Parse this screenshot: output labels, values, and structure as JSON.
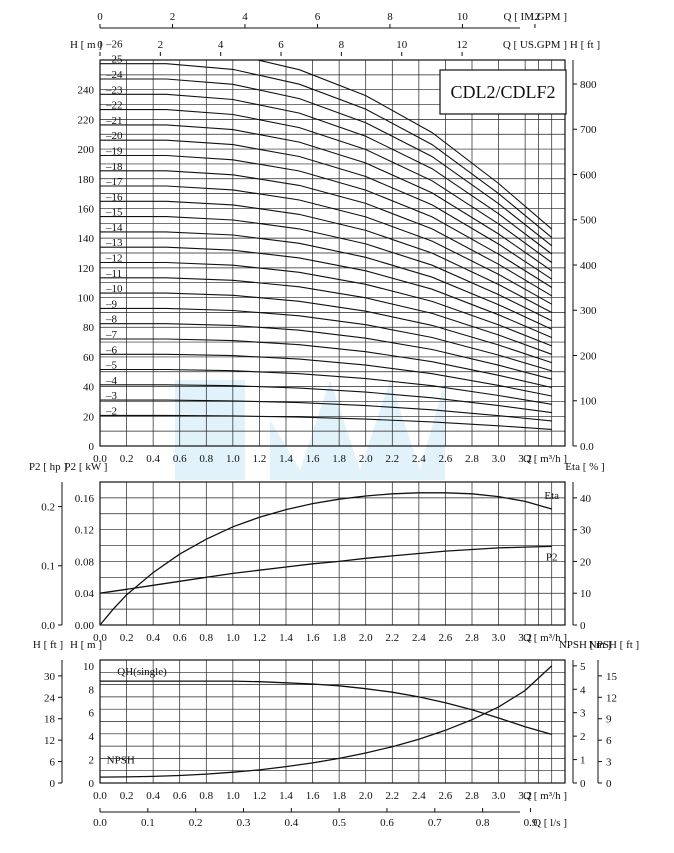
{
  "title": "CDL2/CDLF2",
  "colors": {
    "ink": "#111111",
    "grid": "#222222",
    "watermark": "#cfe9f7"
  },
  "chart_data": [
    {
      "name": "head_curves",
      "type": "line",
      "top_axes": [
        {
          "label": "Q [ IM.GPM ]",
          "ticks": [
            "0",
            "2",
            "4",
            "6",
            "8",
            "10",
            "12"
          ]
        },
        {
          "label": "Q [ US.GPM ]",
          "ticks": [
            "0",
            "2",
            "4",
            "6",
            "8",
            "10",
            "12"
          ]
        }
      ],
      "xlabel": "Q [ m³/h ]",
      "x_ticks": [
        "0.0",
        "0.2",
        "0.4",
        "0.6",
        "0.8",
        "1.0",
        "1.2",
        "1.4",
        "1.6",
        "1.8",
        "2.0",
        "2.2",
        "2.4",
        "2.6",
        "2.8",
        "3.0",
        "3.2"
      ],
      "xlim": [
        0,
        3.5
      ],
      "ylabel_left": "H [ m ]",
      "ylim_left": [
        0,
        260
      ],
      "y_ticks_left": [
        "0",
        "20",
        "40",
        "60",
        "80",
        "100",
        "120",
        "140",
        "160",
        "180",
        "200",
        "220",
        "240"
      ],
      "ylabel_right": "H [ ft ]",
      "y_ticks_right": [
        "0.0",
        "100",
        "200",
        "300",
        "400",
        "500",
        "600",
        "700",
        "800"
      ],
      "stage_labels": [
        "2",
        "3",
        "4",
        "5",
        "6",
        "7",
        "8",
        "9",
        "10",
        "11",
        "12",
        "13",
        "14",
        "15",
        "16",
        "17",
        "18",
        "19",
        "20",
        "21",
        "22",
        "23",
        "24",
        "25",
        "26"
      ],
      "series": [
        {
          "name": "2",
          "x": [
            0,
            0.5,
            1,
            1.5,
            2,
            2.5,
            3,
            3.4
          ],
          "y": [
            20.6,
            20.6,
            20.3,
            19.5,
            18.1,
            16.2,
            13.6,
            11.2
          ]
        },
        {
          "name": "3",
          "x": [
            0,
            0.5,
            1,
            1.5,
            2,
            2.5,
            3,
            3.4
          ],
          "y": [
            30.9,
            30.9,
            30.4,
            29.2,
            27.2,
            24.4,
            20.4,
            16.9
          ]
        },
        {
          "name": "4",
          "x": [
            0,
            0.5,
            1,
            1.5,
            2,
            2.5,
            3,
            3.4
          ],
          "y": [
            41.2,
            41.2,
            40.6,
            39.0,
            36.3,
            32.5,
            27.2,
            22.5
          ]
        },
        {
          "name": "5",
          "x": [
            0,
            0.5,
            1,
            1.5,
            2,
            2.5,
            3,
            3.4
          ],
          "y": [
            51.5,
            51.5,
            50.7,
            48.7,
            45.4,
            40.6,
            34.0,
            28.1
          ]
        },
        {
          "name": "6",
          "x": [
            0,
            0.5,
            1,
            1.5,
            2,
            2.5,
            3,
            3.4
          ],
          "y": [
            61.8,
            61.8,
            60.9,
            58.5,
            54.5,
            48.7,
            40.8,
            33.7
          ]
        },
        {
          "name": "7",
          "x": [
            0,
            0.5,
            1,
            1.5,
            2,
            2.5,
            3,
            3.4
          ],
          "y": [
            72.1,
            72.1,
            71.0,
            68.2,
            63.5,
            56.8,
            47.6,
            39.4
          ]
        },
        {
          "name": "8",
          "x": [
            0,
            0.5,
            1,
            1.5,
            2,
            2.5,
            3,
            3.4
          ],
          "y": [
            82.4,
            82.4,
            81.2,
            78.0,
            72.6,
            65.0,
            54.4,
            45.0
          ]
        },
        {
          "name": "9",
          "x": [
            0,
            0.5,
            1,
            1.5,
            2,
            2.5,
            3,
            3.4
          ],
          "y": [
            92.7,
            92.7,
            91.3,
            87.7,
            81.7,
            73.1,
            61.2,
            50.6
          ]
        },
        {
          "name": "10",
          "x": [
            0,
            0.5,
            1,
            1.5,
            2,
            2.5,
            3,
            3.4
          ],
          "y": [
            103.0,
            103.0,
            101.5,
            97.5,
            90.8,
            81.2,
            68.0,
            56.2
          ]
        },
        {
          "name": "11",
          "x": [
            0,
            0.5,
            1,
            1.5,
            2,
            2.5,
            3,
            3.4
          ],
          "y": [
            113.3,
            113.3,
            111.6,
            107.2,
            99.8,
            89.3,
            74.8,
            61.8
          ]
        },
        {
          "name": "12",
          "x": [
            0,
            0.5,
            1,
            1.5,
            2,
            2.5,
            3,
            3.4
          ],
          "y": [
            123.6,
            123.6,
            121.8,
            117.0,
            108.9,
            97.4,
            81.6,
            67.4
          ]
        },
        {
          "name": "13",
          "x": [
            0,
            0.5,
            1,
            1.5,
            2,
            2.5,
            3,
            3.4
          ],
          "y": [
            133.9,
            133.9,
            131.9,
            126.7,
            118.0,
            105.6,
            88.4,
            73.1
          ]
        },
        {
          "name": "14",
          "x": [
            0,
            0.5,
            1,
            1.5,
            2,
            2.5,
            3,
            3.4
          ],
          "y": [
            144.2,
            144.2,
            142.1,
            136.5,
            127.1,
            113.7,
            95.2,
            78.7
          ]
        },
        {
          "name": "15",
          "x": [
            0,
            0.5,
            1,
            1.5,
            2,
            2.5,
            3,
            3.4
          ],
          "y": [
            154.5,
            154.5,
            152.2,
            146.2,
            136.1,
            121.8,
            102.0,
            84.3
          ]
        },
        {
          "name": "16",
          "x": [
            0,
            0.5,
            1,
            1.5,
            2,
            2.5,
            3,
            3.4
          ],
          "y": [
            164.8,
            164.8,
            162.4,
            156.0,
            145.2,
            129.9,
            108.8,
            89.9
          ]
        },
        {
          "name": "17",
          "x": [
            0,
            0.5,
            1,
            1.5,
            2,
            2.5,
            3,
            3.4
          ],
          "y": [
            175.1,
            175.1,
            172.5,
            165.7,
            154.3,
            138.0,
            115.6,
            95.5
          ]
        },
        {
          "name": "18",
          "x": [
            0,
            0.5,
            1,
            1.5,
            2,
            2.5,
            3,
            3.4
          ],
          "y": [
            185.4,
            185.4,
            182.7,
            175.5,
            163.4,
            146.2,
            122.4,
            101.2
          ]
        },
        {
          "name": "19",
          "x": [
            0,
            0.5,
            1,
            1.5,
            2,
            2.5,
            3,
            3.4
          ],
          "y": [
            195.7,
            195.7,
            192.8,
            185.2,
            172.4,
            154.3,
            129.2,
            106.8
          ]
        },
        {
          "name": "20",
          "x": [
            0,
            0.5,
            1,
            1.5,
            2,
            2.5,
            3,
            3.4
          ],
          "y": [
            206.0,
            206.0,
            203.0,
            195.0,
            181.5,
            162.4,
            136.0,
            112.4
          ]
        },
        {
          "name": "21",
          "x": [
            0,
            0.5,
            1,
            1.5,
            2,
            2.5,
            3,
            3.4
          ],
          "y": [
            216.3,
            216.3,
            213.1,
            204.7,
            190.6,
            170.5,
            142.8,
            118.0
          ]
        },
        {
          "name": "22",
          "x": [
            0,
            0.5,
            1,
            1.5,
            2,
            2.5,
            3,
            3.4
          ],
          "y": [
            226.6,
            226.6,
            223.3,
            214.5,
            199.7,
            178.6,
            149.6,
            123.6
          ]
        },
        {
          "name": "23",
          "x": [
            0,
            0.5,
            1,
            1.5,
            2,
            2.5,
            3,
            3.4
          ],
          "y": [
            236.9,
            236.9,
            233.4,
            224.2,
            208.7,
            186.8,
            156.4,
            129.3
          ]
        },
        {
          "name": "24",
          "x": [
            0,
            0.5,
            1,
            1.5,
            2,
            2.5,
            3,
            3.4
          ],
          "y": [
            247.2,
            247.2,
            243.6,
            234.0,
            217.8,
            194.9,
            163.2,
            134.9
          ]
        },
        {
          "name": "25",
          "x": [
            0,
            0.5,
            1,
            1.5,
            2,
            2.5,
            3,
            3.4
          ],
          "y": [
            257.5,
            257.5,
            253.7,
            243.7,
            226.9,
            203.0,
            170.0,
            140.5
          ]
        },
        {
          "name": "26",
          "x": [
            0,
            0.5,
            1,
            1.5,
            2,
            2.5,
            3,
            3.4
          ],
          "y": [
            267.8,
            267.8,
            263.9,
            253.5,
            236.0,
            211.1,
            176.8,
            146.1
          ]
        }
      ]
    },
    {
      "name": "power_efficiency",
      "type": "line",
      "xlabel": "Q [ m³/h ]",
      "x_ticks": [
        "0.0",
        "0.2",
        "0.4",
        "0.6",
        "0.8",
        "1.0",
        "1.2",
        "1.4",
        "1.6",
        "1.8",
        "2.0",
        "2.2",
        "2.4",
        "2.6",
        "2.8",
        "3.0",
        "3.2"
      ],
      "xlim": [
        0,
        3.5
      ],
      "ylabel_outer": "P2 [ hp ]",
      "y_ticks_outer": [
        "0.0",
        "0.1",
        "0.2"
      ],
      "ylabel_left": "P2 [ kW ]",
      "ylim_left": [
        0,
        0.18
      ],
      "y_ticks_left": [
        "0.00",
        "0.04",
        "0.08",
        "0.12",
        "0.16"
      ],
      "ylabel_right": "Eta [ % ]",
      "ylim_right": [
        0,
        45
      ],
      "y_ticks_right": [
        "0",
        "10",
        "20",
        "30",
        "40"
      ],
      "series": [
        {
          "name": "Eta",
          "axis": "right",
          "x": [
            0,
            0.1,
            0.2,
            0.4,
            0.6,
            0.8,
            1,
            1.2,
            1.4,
            1.6,
            1.8,
            2,
            2.2,
            2.4,
            2.6,
            2.8,
            3,
            3.2,
            3.4
          ],
          "y": [
            0,
            5,
            9.5,
            16.5,
            22.3,
            27,
            30.9,
            33.9,
            36.3,
            38.2,
            39.6,
            40.6,
            41.3,
            41.6,
            41.6,
            41.3,
            40.4,
            38.9,
            36.5
          ]
        },
        {
          "name": "P2",
          "axis": "left",
          "x": [
            0,
            0.2,
            0.4,
            0.6,
            0.8,
            1,
            1.2,
            1.4,
            1.6,
            1.8,
            2,
            2.2,
            2.4,
            2.6,
            2.8,
            3,
            3.2,
            3.4
          ],
          "y": [
            0.04,
            0.045,
            0.05,
            0.055,
            0.06,
            0.065,
            0.069,
            0.073,
            0.077,
            0.08,
            0.084,
            0.087,
            0.09,
            0.093,
            0.095,
            0.097,
            0.098,
            0.099
          ]
        }
      ]
    },
    {
      "name": "single_stage_npsh",
      "type": "line",
      "xlabel": "Q [ m³/h ]",
      "x_ticks": [
        "0.0",
        "0.2",
        "0.4",
        "0.6",
        "0.8",
        "1.0",
        "1.2",
        "1.4",
        "1.6",
        "1.8",
        "2.0",
        "2.2",
        "2.4",
        "2.6",
        "2.8",
        "3.0",
        "3.2"
      ],
      "xlim": [
        0,
        3.5
      ],
      "bottom_axis": {
        "label": "Q [ l/s ]",
        "ticks": [
          "0.0",
          "0.1",
          "0.2",
          "0.3",
          "0.4",
          "0.5",
          "0.6",
          "0.7",
          "0.8",
          "0.9"
        ]
      },
      "ylabel_outer": "H [ ft ]",
      "y_ticks_outer": [
        "0",
        "6",
        "12",
        "18",
        "24",
        "30"
      ],
      "ylabel_left": "H [ m ]",
      "ylim_left": [
        0,
        10.5
      ],
      "y_ticks_left": [
        "0",
        "2",
        "4",
        "6",
        "8",
        "10"
      ],
      "ylabel_right": "NPSH [ m ]",
      "ylim_right": [
        0,
        5.25
      ],
      "y_ticks_right": [
        "0",
        "1",
        "2",
        "3",
        "4",
        "5"
      ],
      "ylabel_right_outer": "NPSH [ ft ]",
      "y_ticks_right_outer": [
        "0",
        "3",
        "6",
        "9",
        "12",
        "15"
      ],
      "series": [
        {
          "name": "QH(single)",
          "axis": "left",
          "x": [
            0,
            0.2,
            0.4,
            0.6,
            0.8,
            1,
            1.2,
            1.4,
            1.6,
            1.8,
            2,
            2.2,
            2.4,
            2.6,
            2.8,
            3,
            3.2,
            3.4
          ],
          "y": [
            8.7,
            8.7,
            8.7,
            8.7,
            8.7,
            8.7,
            8.65,
            8.55,
            8.45,
            8.3,
            8.05,
            7.75,
            7.35,
            6.85,
            6.25,
            5.55,
            4.8,
            4.15
          ]
        },
        {
          "name": "NPSH",
          "axis": "right",
          "x": [
            0,
            0.2,
            0.4,
            0.6,
            0.8,
            1,
            1.2,
            1.4,
            1.6,
            1.8,
            2,
            2.2,
            2.4,
            2.6,
            2.8,
            3,
            3.2,
            3.4
          ],
          "y": [
            0.25,
            0.26,
            0.28,
            0.32,
            0.38,
            0.46,
            0.56,
            0.7,
            0.86,
            1.05,
            1.28,
            1.55,
            1.87,
            2.25,
            2.7,
            3.25,
            3.95,
            5.0
          ]
        }
      ]
    }
  ]
}
